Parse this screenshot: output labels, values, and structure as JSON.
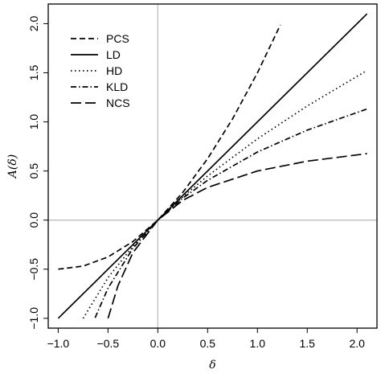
{
  "chart_data": {
    "type": "line",
    "xlabel": "δ",
    "ylabel": "A(δ)",
    "xlim": [
      -1.1,
      2.2
    ],
    "ylim": [
      -1.1,
      2.2
    ],
    "x_ticks": [
      -1.0,
      -0.5,
      0.0,
      0.5,
      1.0,
      1.5,
      2.0
    ],
    "x_tick_labels": [
      "−1.0",
      "−0.5",
      "0.0",
      "0.5",
      "1.0",
      "1.5",
      "2.0"
    ],
    "y_ticks": [
      -1.0,
      -0.5,
      0.0,
      0.5,
      1.0,
      1.5,
      2.0
    ],
    "y_tick_labels": [
      "−1.0",
      "−0.5",
      "0.0",
      "0.5",
      "1.0",
      "1.5",
      "2.0"
    ],
    "reference_lines": {
      "x": 0,
      "y": 0,
      "color": "#bdbdbd"
    },
    "grid": false,
    "legend_position": "top-left",
    "series": [
      {
        "name": "PCS",
        "dash": "dashed",
        "x": [
          -1.0,
          -0.75,
          -0.5,
          -0.25,
          0.0,
          0.25,
          0.5,
          0.75,
          1.0,
          1.23
        ],
        "y": [
          -0.5,
          -0.469,
          -0.375,
          -0.219,
          0.0,
          0.281,
          0.625,
          1.031,
          1.5,
          1.987
        ]
      },
      {
        "name": "LD",
        "dash": "solid",
        "x": [
          -1.0,
          0.0,
          2.1
        ],
        "y": [
          -1.0,
          0.0,
          2.1
        ]
      },
      {
        "name": "HD",
        "dash": "dotted",
        "x": [
          -0.75,
          -0.5,
          -0.25,
          0.0,
          0.25,
          0.5,
          1.0,
          1.5,
          2.1
        ],
        "y": [
          -1.0,
          -0.586,
          -0.268,
          0.0,
          0.236,
          0.449,
          0.828,
          1.162,
          1.524
        ]
      },
      {
        "name": "KLD",
        "dash": "dotdash",
        "x": [
          -0.63,
          -0.5,
          -0.25,
          0.0,
          0.25,
          0.5,
          1.0,
          1.5,
          2.1
        ],
        "y": [
          -0.994,
          -0.693,
          -0.288,
          0.0,
          0.223,
          0.405,
          0.693,
          0.916,
          1.131
        ]
      },
      {
        "name": "NCS",
        "dash": "longdash",
        "x": [
          -0.5,
          -0.4,
          -0.25,
          0.0,
          0.25,
          0.5,
          1.0,
          1.5,
          2.1
        ],
        "y": [
          -1.0,
          -0.667,
          -0.333,
          0.0,
          0.2,
          0.333,
          0.5,
          0.6,
          0.677
        ]
      }
    ]
  }
}
